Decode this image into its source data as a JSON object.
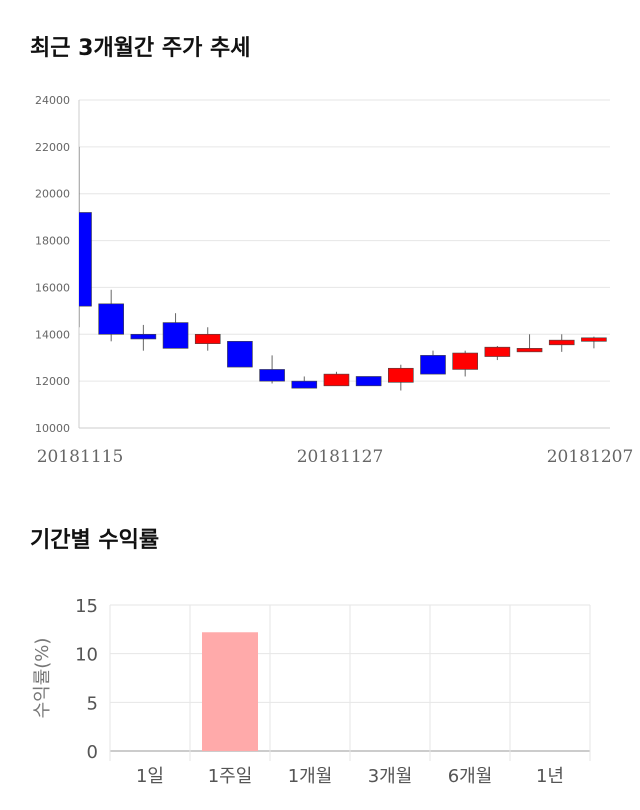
{
  "section1": {
    "title": "최근 3개월간 주가 추세"
  },
  "section2": {
    "title": "기간별 수익률"
  },
  "chart_data": [
    {
      "type": "candlestick",
      "title": "최근 3개월간 주가 추세",
      "ylim": [
        10000,
        24000
      ],
      "yticks": [
        "24000",
        "22000",
        "20000",
        "18000",
        "16000",
        "14000",
        "12000",
        "10000"
      ],
      "xticks": [
        "20181115",
        "20181127",
        "20181207"
      ],
      "grid": true,
      "up_color": "#ff0000",
      "down_color": "#0000ff",
      "candles": [
        {
          "open": 19200,
          "close": 15200,
          "high": 22000,
          "low": 14300
        },
        {
          "open": 15300,
          "close": 14000,
          "high": 15900,
          "low": 13700
        },
        {
          "open": 14000,
          "close": 13800,
          "high": 14400,
          "low": 13300
        },
        {
          "open": 14500,
          "close": 13400,
          "high": 14900,
          "low": 13400
        },
        {
          "open": 13600,
          "close": 14000,
          "high": 14300,
          "low": 13300
        },
        {
          "open": 13700,
          "close": 12600,
          "high": 13700,
          "low": 12600
        },
        {
          "open": 12500,
          "close": 12000,
          "high": 13100,
          "low": 11900
        },
        {
          "open": 12000,
          "close": 11700,
          "high": 12200,
          "low": 11700
        },
        {
          "open": 11800,
          "close": 12300,
          "high": 12400,
          "low": 11800
        },
        {
          "open": 12200,
          "close": 11800,
          "high": 12200,
          "low": 11800
        },
        {
          "open": 11950,
          "close": 12550,
          "high": 12700,
          "low": 11600
        },
        {
          "open": 13100,
          "close": 12300,
          "high": 13300,
          "low": 12300
        },
        {
          "open": 12500,
          "close": 13200,
          "high": 13300,
          "low": 12200
        },
        {
          "open": 13050,
          "close": 13450,
          "high": 13500,
          "low": 12900
        },
        {
          "open": 13250,
          "close": 13400,
          "high": 14000,
          "low": 13250
        },
        {
          "open": 13550,
          "close": 13750,
          "high": 14000,
          "low": 13250
        },
        {
          "open": 13700,
          "close": 13850,
          "high": 13900,
          "low": 13400
        }
      ]
    },
    {
      "type": "bar",
      "title": "기간별 수익률",
      "ylabel": "수익률(%)",
      "ylim": [
        0,
        15
      ],
      "yticks": [
        "15",
        "10",
        "5",
        "0"
      ],
      "categories": [
        "1일",
        "1주일",
        "1개월",
        "3개월",
        "6개월",
        "1년"
      ],
      "values": [
        0,
        12.2,
        0,
        0,
        0,
        0
      ],
      "bar_color": "#ffaaaa",
      "grid": true
    }
  ]
}
